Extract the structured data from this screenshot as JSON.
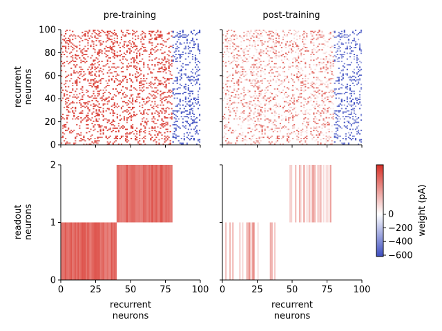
{
  "chart_data": [
    {
      "panel": "recurrent-pre",
      "type": "heatmap",
      "title": "pre-training",
      "ylabel": "recurrent\nneurons",
      "xlim": [
        0,
        100
      ],
      "ylim": [
        0,
        100
      ],
      "yticks": [
        "0",
        "20",
        "40",
        "60",
        "80",
        "100"
      ],
      "x_tick_labels_shown": false,
      "description_of_values": "sparse connectivity matrix: excitatory columns 0-80 positive, inhibitory columns 80-100 negative",
      "density": 0.2,
      "seed": 7
    },
    {
      "panel": "recurrent-post",
      "type": "heatmap",
      "title": "post-training",
      "xlim": [
        0,
        100
      ],
      "ylim": [
        0,
        100
      ],
      "x_tick_labels_shown": false,
      "y_tick_labels_shown": false,
      "density": 0.2,
      "seed": 7
    },
    {
      "panel": "readout-pre",
      "type": "heatmap",
      "ylabel": "readout\nneurons",
      "xlabel": "recurrent\nneurons",
      "xlim": [
        0,
        100
      ],
      "ylim": [
        0,
        2
      ],
      "xticks": [
        "0",
        "25",
        "50",
        "75",
        "100"
      ],
      "yticks": [
        "0",
        "1",
        "2"
      ],
      "blocks": [
        {
          "row": 0,
          "x_start": 0,
          "x_end": 40,
          "intensity": 0.8
        },
        {
          "row": 1,
          "x_start": 40,
          "x_end": 80,
          "intensity": 0.8
        }
      ]
    },
    {
      "panel": "readout-post",
      "type": "heatmap",
      "xlabel": "recurrent\nneurons",
      "xlim": [
        0,
        100
      ],
      "ylim": [
        0,
        2
      ],
      "xticks": [
        "0",
        "25",
        "50",
        "75",
        "100"
      ],
      "y_tick_labels_shown": false,
      "active_columns_row1": [
        48,
        49,
        52,
        55,
        56,
        58,
        60,
        61,
        62,
        64,
        65,
        66,
        68,
        69,
        70,
        72,
        74,
        75,
        77
      ],
      "active_columns_row0": [
        2,
        5,
        7,
        12,
        14,
        17,
        18,
        19,
        21,
        22,
        25,
        34,
        35,
        37
      ]
    }
  ],
  "colorbar": {
    "label": "weight (pA)",
    "ticks": [
      "0",
      "−200",
      "−400",
      "−600"
    ],
    "tick_values": [
      0,
      -200,
      -400,
      -600
    ],
    "range": [
      -620,
      720
    ],
    "colors": {
      "negative": "#3b4cc0",
      "zero": "#ffffff",
      "positive": "#d73027"
    }
  }
}
